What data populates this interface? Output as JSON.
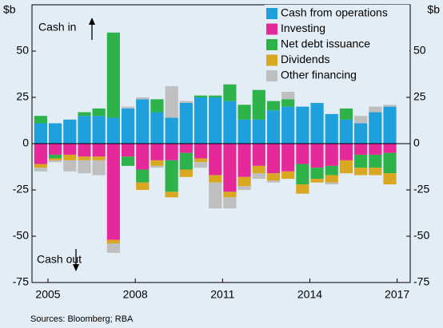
{
  "chart_data": {
    "type": "stacked_bar",
    "y_label": "$b",
    "annotations": [
      "Cash in",
      "Cash out"
    ],
    "source": "Sources: Bloomberg; RBA",
    "x": [
      2004.5,
      2005,
      2005.5,
      2006,
      2006.5,
      2007,
      2007.5,
      2008,
      2008.5,
      2009,
      2009.5,
      2010,
      2010.5,
      2011,
      2011.5,
      2012,
      2012.5,
      2013,
      2013.5,
      2014,
      2014.5,
      2015,
      2015.5,
      2016,
      2016.5
    ],
    "xlim": [
      2004.45,
      2017.45
    ],
    "xticks": [
      2005,
      2008,
      2011,
      2014,
      2017
    ],
    "ylim": [
      -75,
      75
    ],
    "yticks": [
      -75,
      -50,
      -25,
      0,
      25,
      50
    ],
    "legend": "top-right",
    "series": [
      {
        "name": "Cash from operations",
        "color": "#1fa0dc",
        "values": [
          11,
          11,
          13,
          15,
          15,
          14,
          19,
          24,
          17,
          14,
          22,
          25,
          25,
          23,
          13,
          13,
          18,
          20,
          20,
          22,
          16,
          13,
          11,
          17,
          20
        ]
      },
      {
        "name": "Investing",
        "color": "#e6299a",
        "values": [
          -11,
          -6,
          -6,
          -7,
          -7,
          -52,
          -7,
          -14,
          -9,
          -9,
          -5,
          -8,
          -17,
          -26,
          -18,
          -12,
          -16,
          -15,
          -11,
          -13,
          -12,
          -9,
          -6,
          -6,
          -5
        ]
      },
      {
        "name": "Net debt issuance",
        "color": "#2eb34a",
        "values": [
          4,
          -2,
          0,
          2,
          4,
          46,
          -5,
          -7,
          7,
          -17,
          -9,
          1,
          1,
          9,
          8,
          16,
          5,
          4,
          -11,
          -6,
          -5,
          6,
          -7,
          -7,
          -11
        ]
      },
      {
        "name": "Dividends",
        "color": "#d9a820",
        "values": [
          -2,
          -1,
          -3,
          -2,
          -2,
          -2,
          0,
          -4,
          -3,
          -3,
          -4,
          -2,
          -4,
          -3,
          -5,
          -4,
          -4,
          -4,
          -5,
          -2,
          -4,
          -7,
          -4,
          -4,
          -6
        ]
      },
      {
        "name": "Other financing",
        "color": "#bfbfbf",
        "values": [
          -2,
          -1,
          -6,
          -7,
          -8,
          -5,
          1,
          1,
          -1,
          17,
          1,
          -3,
          -14,
          -6,
          -2,
          -3,
          -1,
          4,
          0,
          0,
          -1,
          0,
          4,
          3,
          1
        ]
      }
    ]
  }
}
